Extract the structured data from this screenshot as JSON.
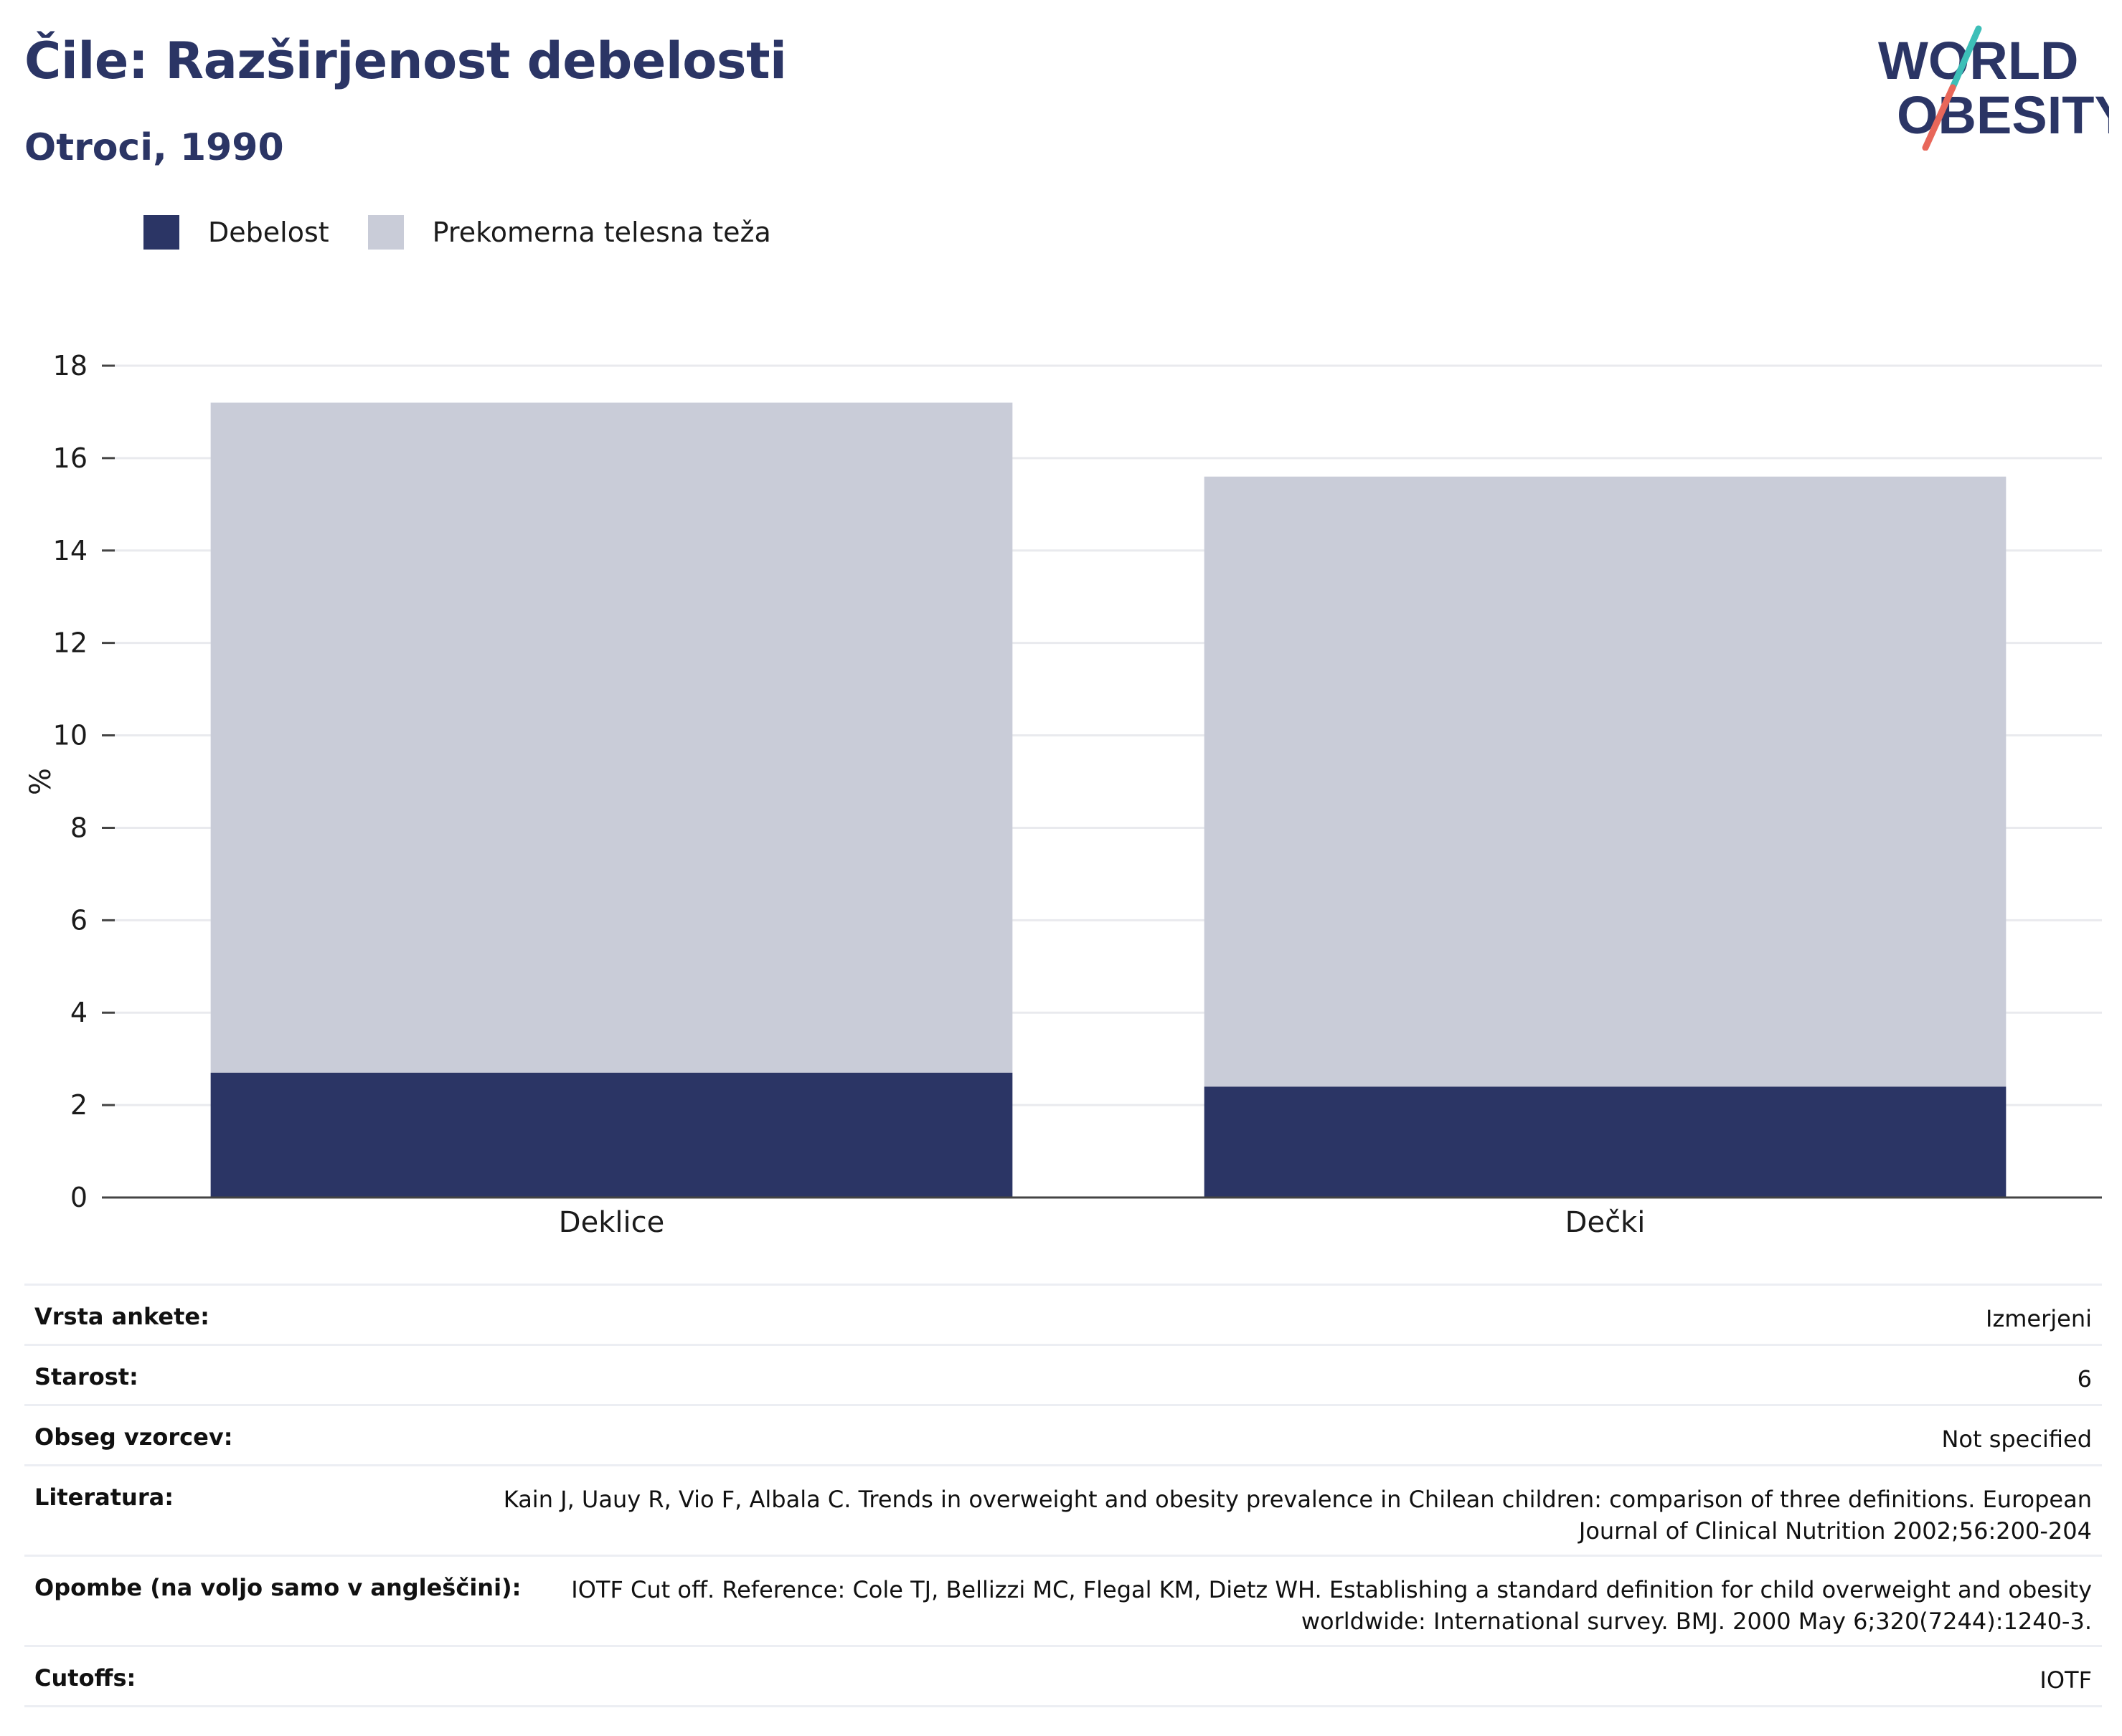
{
  "header": {
    "title": "Čile: Razširjenost debelosti",
    "subtitle": "Otroci, 1990"
  },
  "logo": {
    "line1": "WORLD",
    "line2": "OBESITY",
    "colors": {
      "text": "#2b3565",
      "slash_top": "#3dbfb8",
      "slash_bottom": "#e8675a"
    }
  },
  "legend": [
    {
      "label": "Debelost",
      "color": "#2b3565"
    },
    {
      "label": "Prekomerna telesna teža",
      "color": "#c9ccd8"
    }
  ],
  "chart_data": {
    "type": "bar",
    "stacked": true,
    "categories": [
      "Deklice",
      "Dečki"
    ],
    "series": [
      {
        "name": "Debelost",
        "color": "#2b3565",
        "values": [
          2.7,
          2.4
        ]
      },
      {
        "name": "Prekomerna telesna teža",
        "color": "#c9ccd8",
        "values": [
          14.5,
          13.2
        ]
      }
    ],
    "ylabel": "%",
    "ylim": [
      0,
      18
    ],
    "yticks": [
      0,
      2,
      4,
      6,
      8,
      10,
      12,
      14,
      16,
      18
    ],
    "grid": true,
    "legend_position": "top-left"
  },
  "info": [
    {
      "label": "Vrsta ankete:",
      "value": "Izmerjeni"
    },
    {
      "label": "Starost:",
      "value": "6"
    },
    {
      "label": "Obseg vzorcev:",
      "value": "Not specified"
    },
    {
      "label": "Literatura:",
      "value": "Kain J, Uauy R, Vio F, Albala C. Trends in overweight and obesity prevalence in Chilean children: comparison of three definitions. European Journal of Clinical Nutrition 2002;56:200-204"
    },
    {
      "label": "Opombe (na voljo samo v angleščini):",
      "value": "IOTF Cut off. Reference: Cole TJ, Bellizzi MC, Flegal KM, Dietz WH. Establishing a standard definition for child overweight and obesity worldwide: International survey. BMJ. 2000 May 6;320(7244):1240-3."
    },
    {
      "label": "Cutoffs:",
      "value": "IOTF"
    }
  ]
}
